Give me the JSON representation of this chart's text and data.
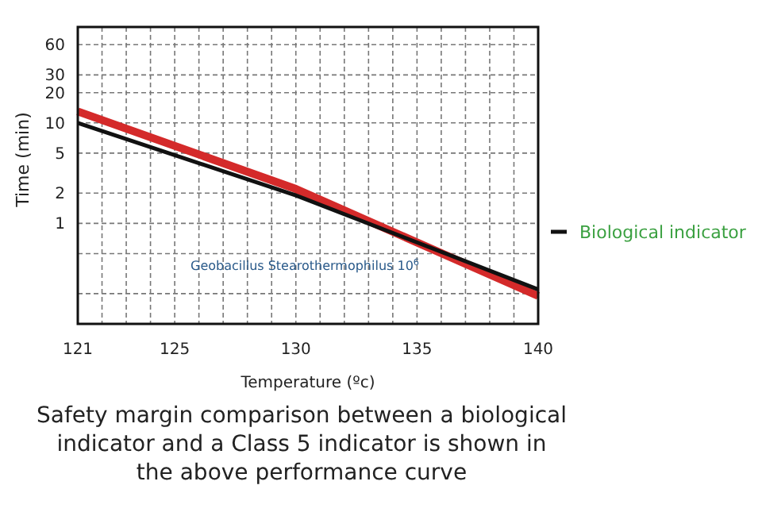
{
  "chart_data": {
    "type": "line",
    "xlabel": "Temperature (ºc)",
    "ylabel": "Time (min)",
    "x": [
      121,
      130,
      140
    ],
    "series": [
      {
        "color": "#d42a2a",
        "values": [
          13,
          2.2,
          0.19
        ]
      },
      {
        "name": "Biological indicator",
        "color": "#111111",
        "values": [
          10,
          1.9,
          0.22
        ]
      }
    ],
    "xlim": [
      121,
      140
    ],
    "xticks": [
      121,
      {
        "value": 122,
        "label": null
      },
      {
        "value": 123,
        "label": null
      },
      {
        "value": 124,
        "label": null
      },
      125,
      {
        "value": 126,
        "label": null
      },
      {
        "value": 127,
        "label": null
      },
      {
        "value": 128,
        "label": null
      },
      {
        "value": 129,
        "label": null
      },
      130,
      {
        "value": 131,
        "label": null
      },
      {
        "value": 132,
        "label": null
      },
      {
        "value": 133,
        "label": null
      },
      {
        "value": 134,
        "label": null
      },
      135,
      {
        "value": 136,
        "label": null
      },
      {
        "value": 137,
        "label": null
      },
      {
        "value": 138,
        "label": null
      },
      {
        "value": 139,
        "label": null
      },
      140
    ],
    "ylim": [
      0.1,
      90
    ],
    "yticks": [
      {
        "value": 0.2,
        "label": null
      },
      {
        "value": 0.5,
        "label": null
      },
      1,
      2,
      5,
      10,
      20,
      30,
      60
    ],
    "log": "y",
    "grid": true,
    "legend": "right",
    "annotations": [
      "Geobacillus Stearothermophilus 10$^{6}$",
      "Safety margin comparison between a biological indicator and a Class 5 indicator is shown in the above performance curve"
    ]
  }
}
